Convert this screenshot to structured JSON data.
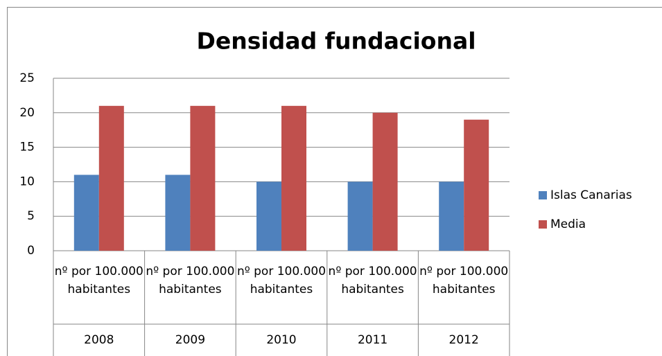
{
  "chart_data": {
    "type": "bar",
    "title": "Densidad fundacional",
    "categories": [
      {
        "label": "nº por 100.000 habitantes",
        "group": "2008"
      },
      {
        "label": "nº por 100.000 habitantes",
        "group": "2009"
      },
      {
        "label": "nº por 100.000 habitantes",
        "group": "2010"
      },
      {
        "label": "nº por 100.000 habitantes",
        "group": "2011"
      },
      {
        "label": "nº por 100.000 habitantes",
        "group": "2012"
      }
    ],
    "series": [
      {
        "name": "Islas Canarias",
        "color": "#4f81bd",
        "values": [
          11,
          11,
          10,
          10,
          10
        ]
      },
      {
        "name": "Media",
        "color": "#c0504d",
        "values": [
          21,
          21,
          21,
          20,
          19
        ]
      }
    ],
    "ylim": [
      0,
      25
    ],
    "yticks": [
      0,
      5,
      10,
      15,
      20,
      25
    ],
    "grid": true,
    "legend": "right"
  }
}
